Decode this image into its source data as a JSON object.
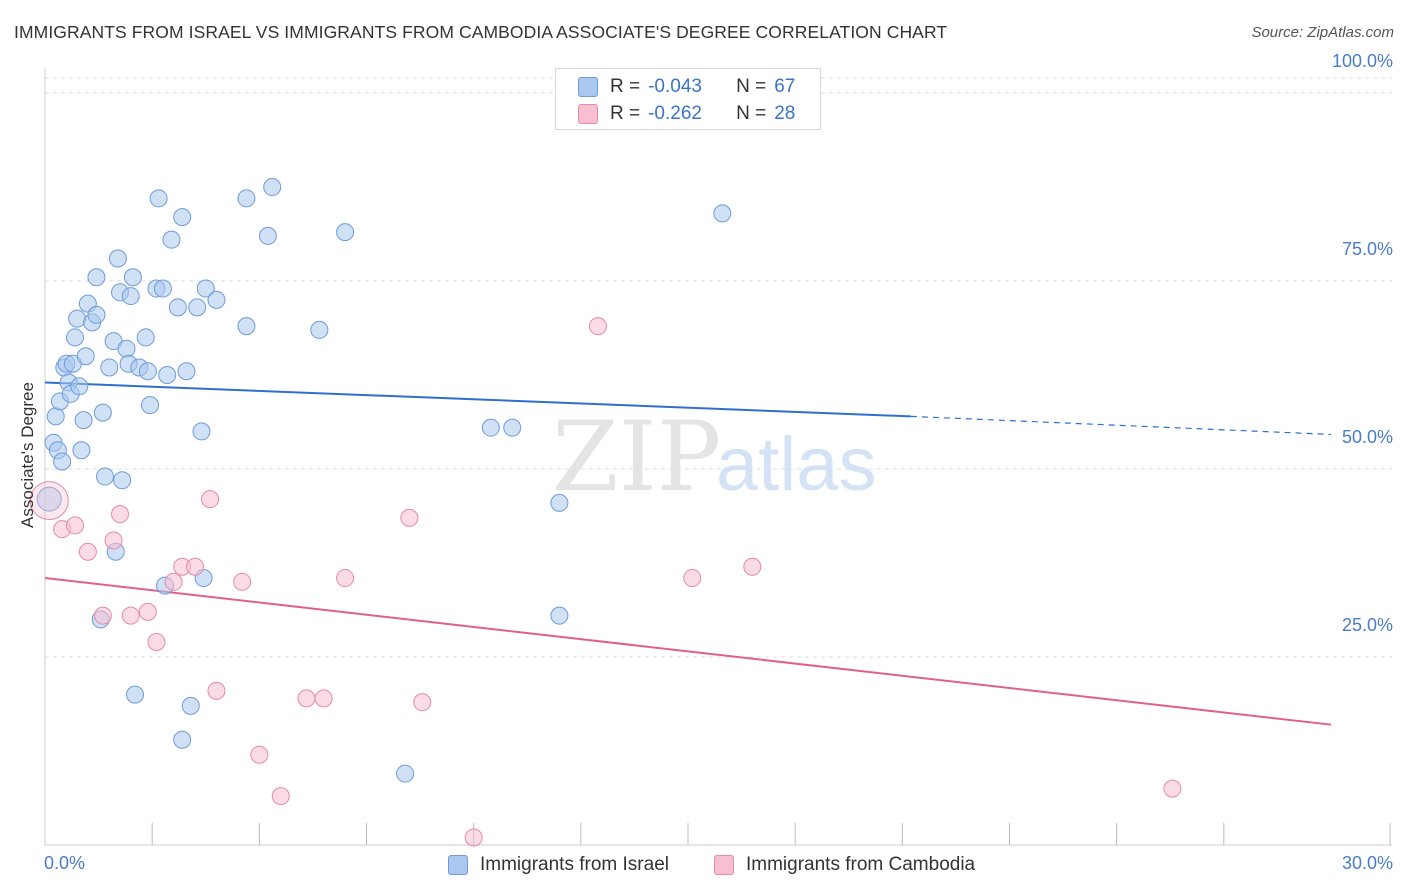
{
  "title": "IMMIGRANTS FROM ISRAEL VS IMMIGRANTS FROM CAMBODIA ASSOCIATE'S DEGREE CORRELATION CHART",
  "source": "Source: ZipAtlas.com",
  "watermark": {
    "zip": "ZIP",
    "atlas": "atlas"
  },
  "colors": {
    "israel_fill": "#aac8ef",
    "israel_stroke": "#6e9bd9",
    "israel_line": "#2f6fd0",
    "cambodia_fill": "#f7bfd1",
    "cambodia_stroke": "#e58aa8",
    "cambodia_line": "#e0608c",
    "tick_text": "#4a7cc7",
    "grid": "#dddddd"
  },
  "legend": {
    "rows": [
      {
        "r_label": "R =",
        "r_value": "-0.043",
        "n_label": "N =",
        "n_value": "67"
      },
      {
        "r_label": "R =",
        "r_value": "-0.262",
        "n_label": "N =",
        "n_value": "28"
      }
    ]
  },
  "chart_data": {
    "type": "scatter",
    "title": "IMMIGRANTS FROM ISRAEL VS IMMIGRANTS FROM CAMBODIA ASSOCIATE'S DEGREE CORRELATION CHART",
    "xlabel": "",
    "ylabel": "Associate's Degree",
    "xlim": [
      0,
      30
    ],
    "ylim": [
      0,
      102
    ],
    "x_ticks": [
      {
        "value": 0,
        "label": "0.0%"
      },
      {
        "value": 30,
        "label": "30.0%"
      }
    ],
    "y_ticks": [
      {
        "value": 25,
        "label": "25.0%"
      },
      {
        "value": 50,
        "label": "50.0%"
      },
      {
        "value": 75,
        "label": "75.0%"
      },
      {
        "value": 100,
        "label": "100.0%"
      }
    ],
    "grid": true,
    "legend_position": "top-center",
    "series": [
      {
        "name": "Immigrants from Israel",
        "color": "#aac8ef",
        "trend": {
          "x0": 0,
          "y0": 61.5,
          "x1": 20.2,
          "y1": 57.0,
          "dash_to_x": 30,
          "dash_to_y": 54.6
        },
        "points": [
          [
            0.1,
            46.0
          ],
          [
            0.2,
            53.5
          ],
          [
            0.25,
            57.0
          ],
          [
            0.3,
            52.5
          ],
          [
            0.35,
            59.0
          ],
          [
            0.4,
            51.0
          ],
          [
            0.45,
            63.5
          ],
          [
            0.5,
            64.0
          ],
          [
            0.55,
            61.5
          ],
          [
            0.6,
            60.0
          ],
          [
            0.65,
            64.0
          ],
          [
            0.7,
            67.5
          ],
          [
            0.75,
            70.0
          ],
          [
            0.8,
            61.0
          ],
          [
            0.85,
            52.5
          ],
          [
            0.9,
            56.5
          ],
          [
            0.95,
            65.0
          ],
          [
            1.0,
            72.0
          ],
          [
            1.1,
            69.5
          ],
          [
            1.2,
            70.5
          ],
          [
            1.2,
            75.5
          ],
          [
            1.35,
            57.5
          ],
          [
            1.4,
            49.0
          ],
          [
            1.5,
            63.5
          ],
          [
            1.6,
            67.0
          ],
          [
            1.65,
            39.0
          ],
          [
            1.7,
            78.0
          ],
          [
            1.75,
            73.5
          ],
          [
            1.8,
            48.5
          ],
          [
            1.9,
            66.0
          ],
          [
            1.95,
            64.0
          ],
          [
            2.0,
            73.0
          ],
          [
            2.05,
            75.5
          ],
          [
            2.2,
            63.5
          ],
          [
            2.35,
            67.5
          ],
          [
            2.4,
            63.0
          ],
          [
            2.45,
            58.5
          ],
          [
            2.6,
            74.0
          ],
          [
            2.65,
            86.0
          ],
          [
            2.75,
            74.0
          ],
          [
            2.8,
            34.5
          ],
          [
            2.85,
            62.5
          ],
          [
            2.95,
            80.5
          ],
          [
            3.1,
            71.5
          ],
          [
            3.2,
            83.5
          ],
          [
            3.3,
            63.0
          ],
          [
            3.4,
            18.5
          ],
          [
            3.55,
            71.5
          ],
          [
            3.65,
            55.0
          ],
          [
            3.7,
            35.5
          ],
          [
            3.75,
            74.0
          ],
          [
            4.0,
            72.5
          ],
          [
            4.7,
            69.0
          ],
          [
            4.7,
            86.0
          ],
          [
            5.2,
            81.0
          ],
          [
            5.3,
            87.5
          ],
          [
            6.4,
            68.5
          ],
          [
            7.0,
            81.5
          ],
          [
            8.4,
            9.5
          ],
          [
            10.4,
            55.5
          ],
          [
            10.9,
            55.5
          ],
          [
            12.0,
            45.5
          ],
          [
            12.0,
            30.5
          ],
          [
            15.8,
            84.0
          ],
          [
            1.3,
            30.0
          ],
          [
            2.1,
            20.0
          ],
          [
            3.2,
            14.0
          ]
        ]
      },
      {
        "name": "Immigrants from Cambodia",
        "color": "#f7bfd1",
        "trend": {
          "x0": 0,
          "y0": 35.5,
          "x1": 30,
          "y1": 16.0
        },
        "points": [
          [
            0.1,
            45.8
          ],
          [
            0.4,
            42.0
          ],
          [
            0.7,
            42.5
          ],
          [
            1.0,
            39.0
          ],
          [
            1.35,
            30.5
          ],
          [
            1.6,
            40.5
          ],
          [
            1.75,
            44.0
          ],
          [
            2.0,
            30.5
          ],
          [
            2.4,
            31.0
          ],
          [
            2.6,
            27.0
          ],
          [
            3.0,
            35.0
          ],
          [
            3.2,
            37.0
          ],
          [
            3.5,
            37.0
          ],
          [
            3.85,
            46.0
          ],
          [
            4.0,
            20.5
          ],
          [
            4.6,
            35.0
          ],
          [
            5.0,
            12.0
          ],
          [
            5.5,
            6.5
          ],
          [
            6.1,
            19.5
          ],
          [
            6.5,
            19.5
          ],
          [
            7.0,
            35.5
          ],
          [
            8.5,
            43.5
          ],
          [
            8.8,
            19.0
          ],
          [
            10.0,
            1.0
          ],
          [
            12.9,
            69.0
          ],
          [
            15.1,
            35.5
          ],
          [
            16.5,
            37.0
          ],
          [
            26.3,
            7.5
          ]
        ]
      }
    ]
  }
}
